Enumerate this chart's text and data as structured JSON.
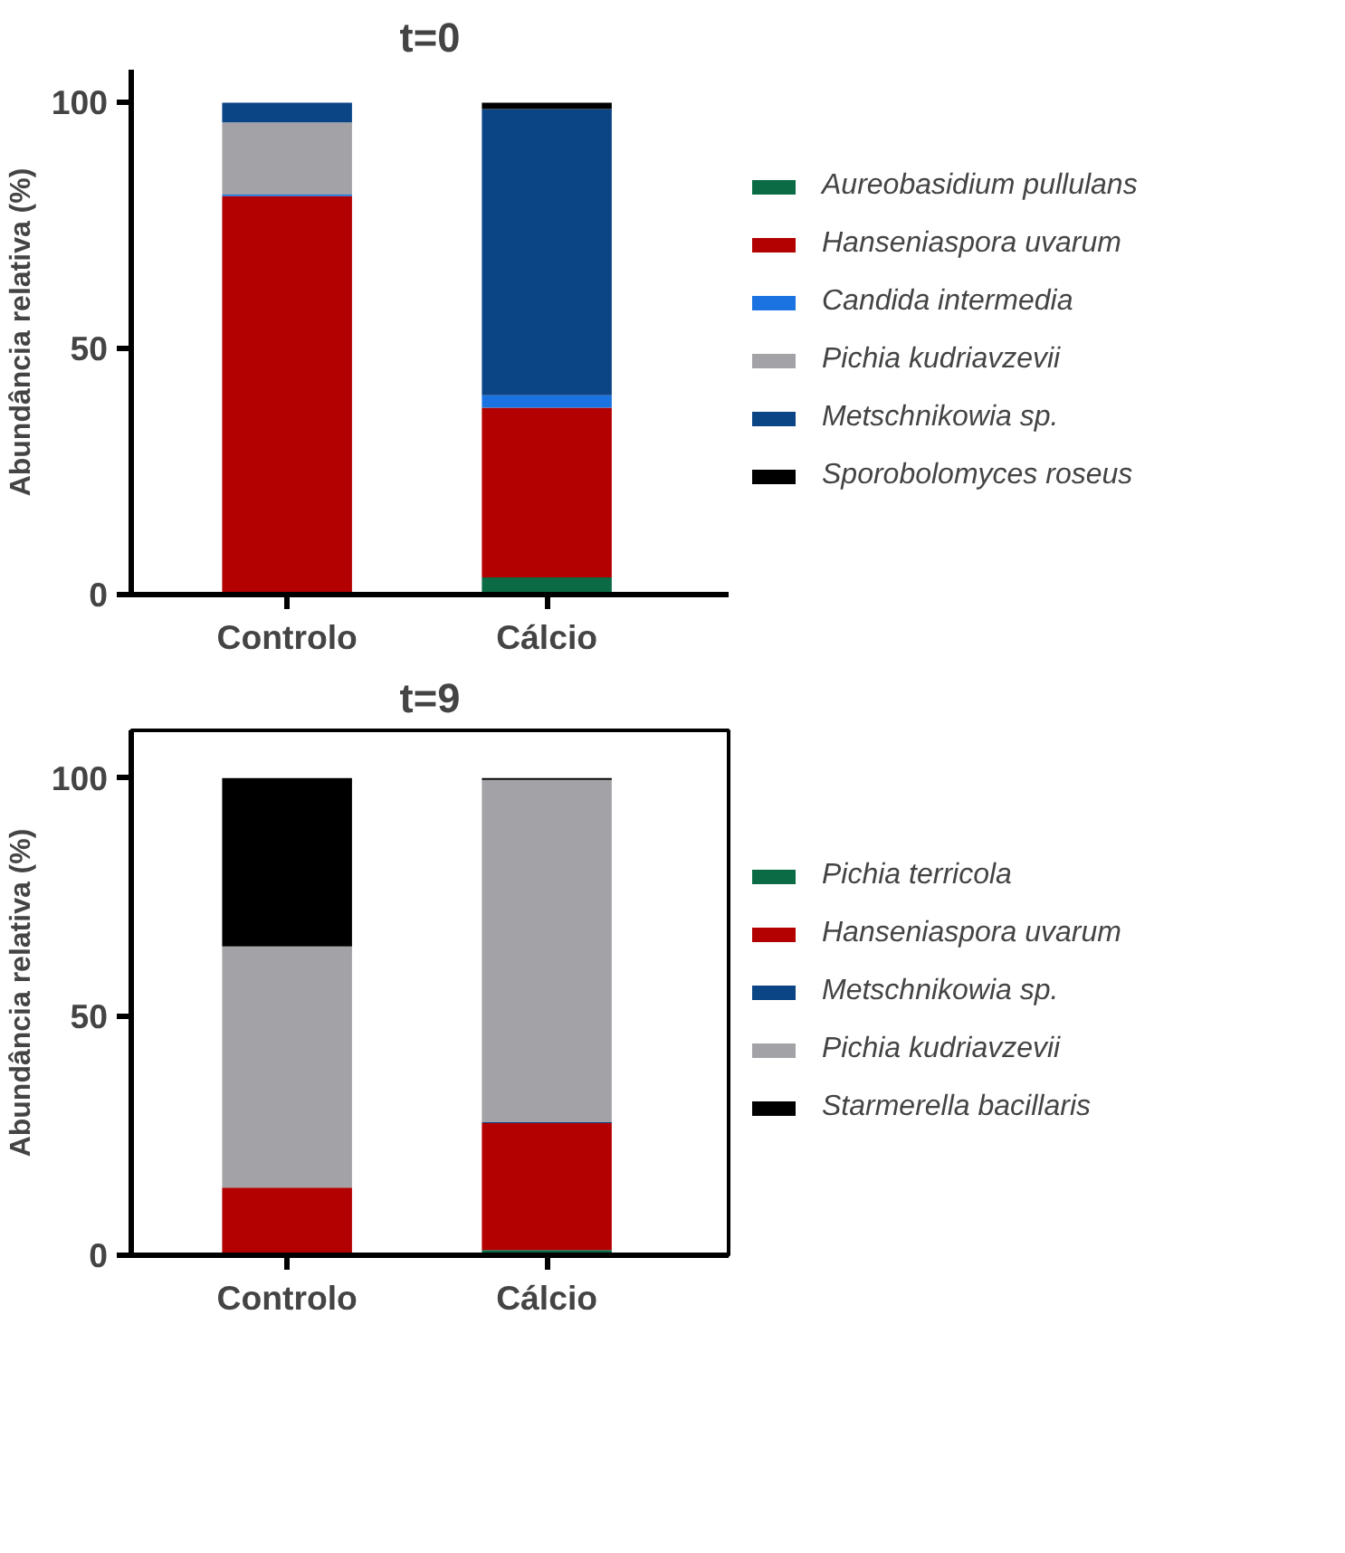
{
  "chart_data": [
    {
      "type": "bar",
      "title": "t=0",
      "ylabel": "Abundância relativa (%)",
      "categories": [
        "Controlo",
        "Cálcio"
      ],
      "stacked": true,
      "ylim": [
        0,
        106.7
      ],
      "yticks": [
        0,
        50,
        100
      ],
      "grid": false,
      "legend": "right",
      "series": [
        {
          "name": "Aureobasidium pullulans",
          "color": "#0a6b45",
          "values": [
            0,
            3.5
          ]
        },
        {
          "name": "Hanseniaspora uvarum",
          "color": "#b30000",
          "values": [
            81,
            34.5
          ]
        },
        {
          "name": "Candida intermedia",
          "color": "#1a73e0",
          "values": [
            0.3,
            2.5
          ]
        },
        {
          "name": "Pichia kudriavzevii",
          "color": "#a3a3a7",
          "values": [
            14.7,
            0
          ]
        },
        {
          "name": "Metschnikowia sp.",
          "color": "#0b4585",
          "values": [
            4,
            58.2
          ]
        },
        {
          "name": "Sporobolomyces roseus",
          "color": "#000000",
          "values": [
            0,
            1.3
          ]
        }
      ]
    },
    {
      "type": "bar",
      "title": "t=9",
      "ylabel": "Abundância relativa (%)",
      "categories": [
        "Controlo",
        "Cálcio"
      ],
      "stacked": true,
      "ylim": [
        0,
        110
      ],
      "yticks": [
        0,
        50,
        100
      ],
      "grid": false,
      "legend": "right",
      "series": [
        {
          "name": "Pichia terricola",
          "color": "#0a6b45",
          "values": [
            0,
            1.1
          ]
        },
        {
          "name": "Hanseniaspora uvarum",
          "color": "#b30000",
          "values": [
            14.2,
            26.6
          ]
        },
        {
          "name": "Metschnikowia sp.",
          "color": "#0b4585",
          "values": [
            0,
            0.2
          ]
        },
        {
          "name": "Pichia kudriavzevii",
          "color": "#a3a3a7",
          "values": [
            50.5,
            71.7
          ]
        },
        {
          "name": "Starmerella bacillaris",
          "color": "#000000",
          "values": [
            35.3,
            0.4
          ]
        }
      ]
    }
  ]
}
